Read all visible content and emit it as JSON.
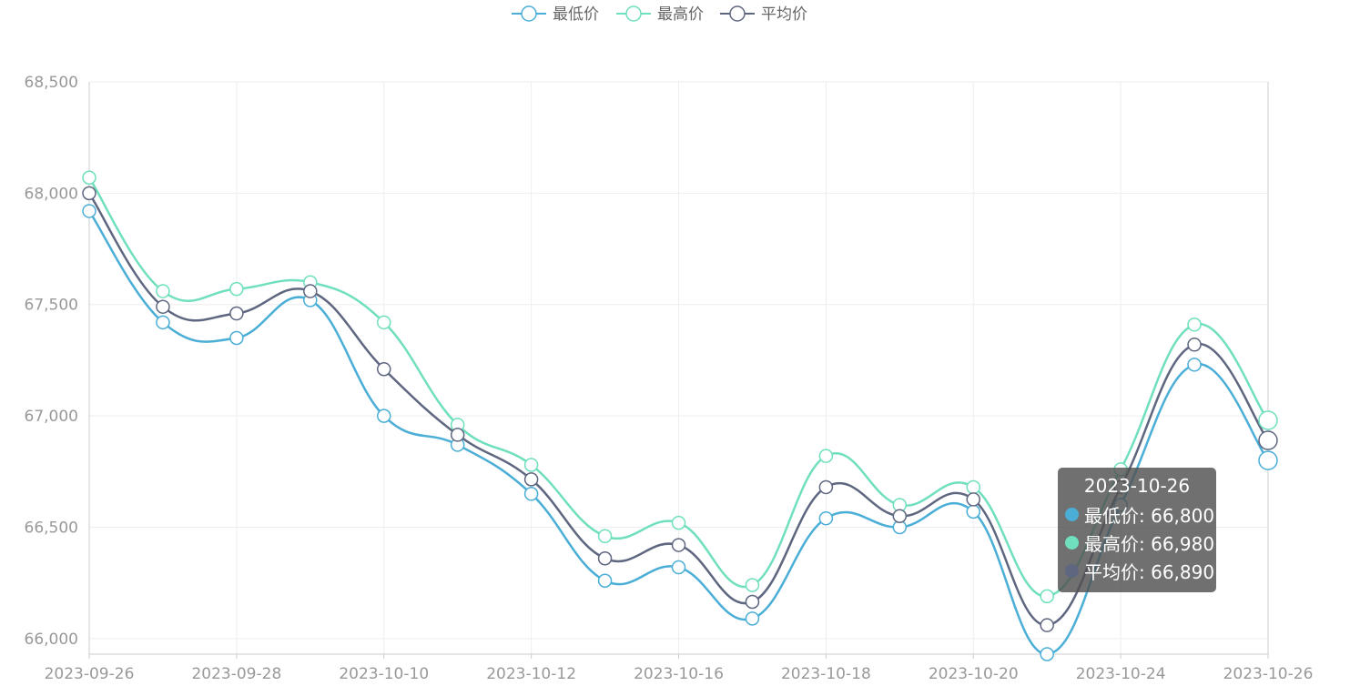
{
  "chart_data": {
    "type": "line",
    "legend": [
      "最低价",
      "最高价",
      "平均价"
    ],
    "legend_position": "top-center",
    "x": [
      "2023-09-26",
      "2023-09-27",
      "2023-09-28",
      "2023-09-29",
      "2023-10-10",
      "2023-10-11",
      "2023-10-12",
      "2023-10-13",
      "2023-10-16",
      "2023-10-17",
      "2023-10-18",
      "2023-10-19",
      "2023-10-20",
      "2023-10-23",
      "2023-10-24",
      "2023-10-25",
      "2023-10-26"
    ],
    "x_tick_labels": [
      "2023-09-26",
      "2023-09-28",
      "2023-10-10",
      "2023-10-12",
      "2023-10-16",
      "2023-10-18",
      "2023-10-20",
      "2023-10-24",
      "2023-10-26"
    ],
    "y_tick_labels": [
      "66,000",
      "66,500",
      "67,000",
      "67,500",
      "68,000",
      "68,500"
    ],
    "y_ticks": [
      66000,
      66500,
      67000,
      67500,
      68000,
      68500
    ],
    "ylim": [
      65930,
      68500
    ],
    "grid": true,
    "series": [
      {
        "name": "最低价",
        "color": "#4aaed6",
        "values": [
          67920,
          67420,
          67350,
          67520,
          67000,
          66870,
          66650,
          66260,
          66320,
          66090,
          66540,
          66500,
          66570,
          65930,
          66600,
          67230,
          66800
        ]
      },
      {
        "name": "最高价",
        "color": "#6fdfbe",
        "values": [
          68070,
          67560,
          67570,
          67600,
          67420,
          66960,
          66780,
          66460,
          66520,
          66240,
          66820,
          66600,
          66680,
          66190,
          66760,
          67410,
          66980
        ]
      },
      {
        "name": "平均价",
        "color": "#5e6680",
        "values": [
          68000,
          67490,
          67460,
          67560,
          67210,
          66915,
          66715,
          66360,
          66420,
          66165,
          66680,
          66550,
          66625,
          66060,
          66680,
          67320,
          66890
        ]
      }
    ],
    "tooltip": {
      "title": "2023-10-26",
      "rows": [
        {
          "label": "最低价: 66,800",
          "color": "#4aaed6"
        },
        {
          "label": "最高价: 66,980",
          "color": "#6fdfbe"
        },
        {
          "label": "平均价: 66,890",
          "color": "#5e6680"
        }
      ]
    }
  }
}
